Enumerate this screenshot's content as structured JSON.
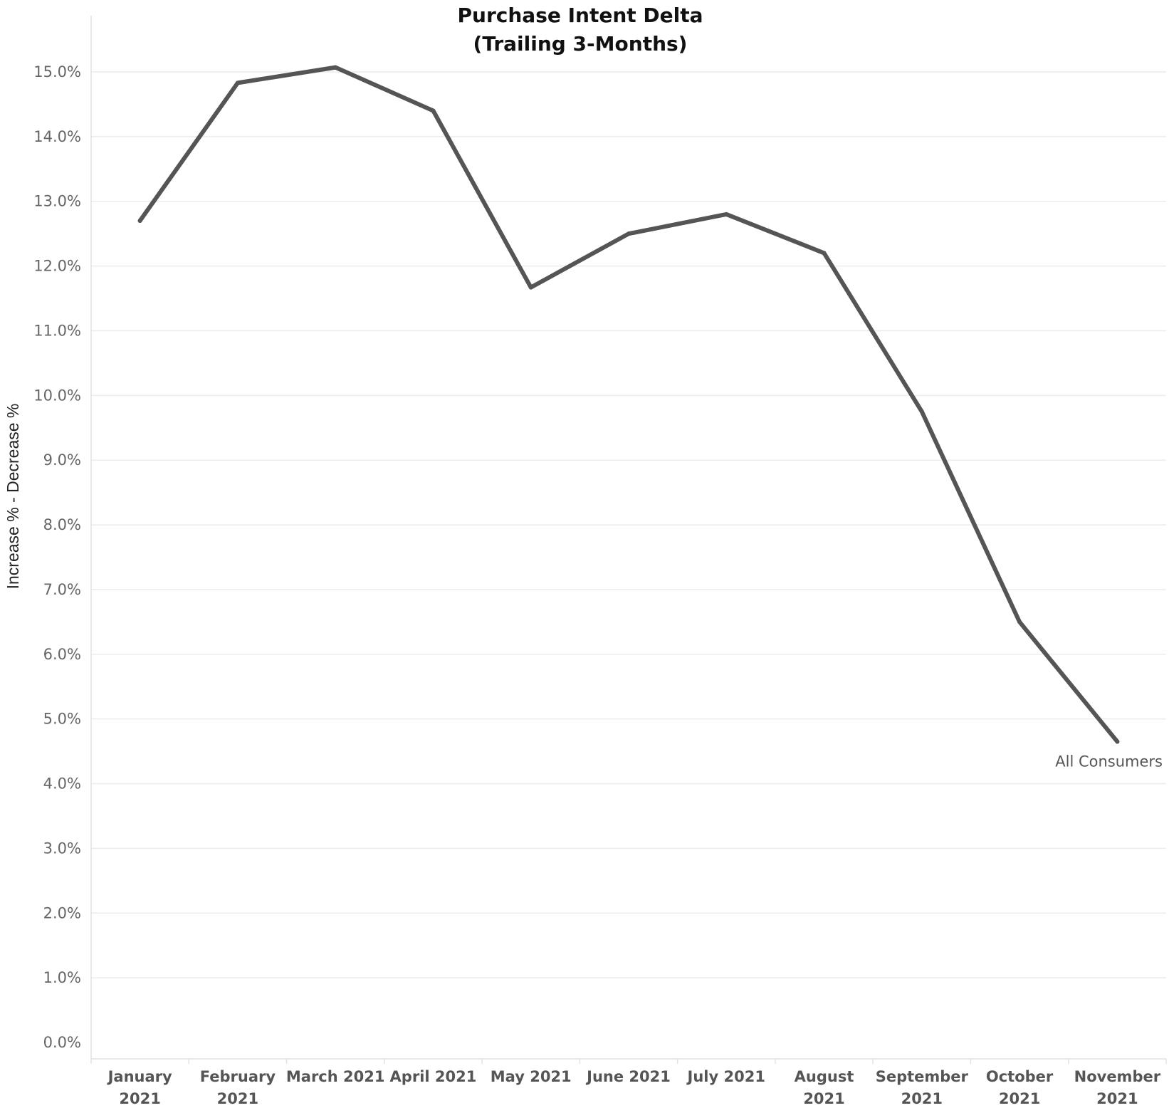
{
  "chart_data": {
    "type": "line",
    "title_lines": [
      "Purchase Intent Delta",
      "(Trailing 3-Months)"
    ],
    "ylabel": "Increase % - Decrease %",
    "xlabel": "",
    "ylim": [
      0,
      0.155
    ],
    "yticks": [
      0,
      0.01,
      0.02,
      0.03,
      0.04,
      0.05,
      0.06,
      0.07,
      0.08,
      0.09,
      0.1,
      0.11,
      0.12,
      0.13,
      0.14,
      0.15
    ],
    "ytick_labels": [
      "0.0%",
      "1.0%",
      "2.0%",
      "3.0%",
      "4.0%",
      "5.0%",
      "6.0%",
      "7.0%",
      "8.0%",
      "9.0%",
      "10.0%",
      "11.0%",
      "12.0%",
      "13.0%",
      "14.0%",
      "15.0%"
    ],
    "categories": [
      [
        "January",
        "2021"
      ],
      [
        "February",
        "2021"
      ],
      [
        "March 2021"
      ],
      [
        "April 2021"
      ],
      [
        "May 2021"
      ],
      [
        "June 2021"
      ],
      [
        "July 2021"
      ],
      [
        "August",
        "2021"
      ],
      [
        "September",
        "2021"
      ],
      [
        "October",
        "2021"
      ],
      [
        "November",
        "2021"
      ]
    ],
    "series": [
      {
        "name": "All Consumers",
        "color": "#555555",
        "values": [
          0.127,
          0.1483,
          0.1507,
          0.144,
          0.1167,
          0.125,
          0.128,
          0.122,
          0.0975,
          0.065,
          0.0465
        ]
      }
    ],
    "grid": true,
    "legend": "none"
  }
}
